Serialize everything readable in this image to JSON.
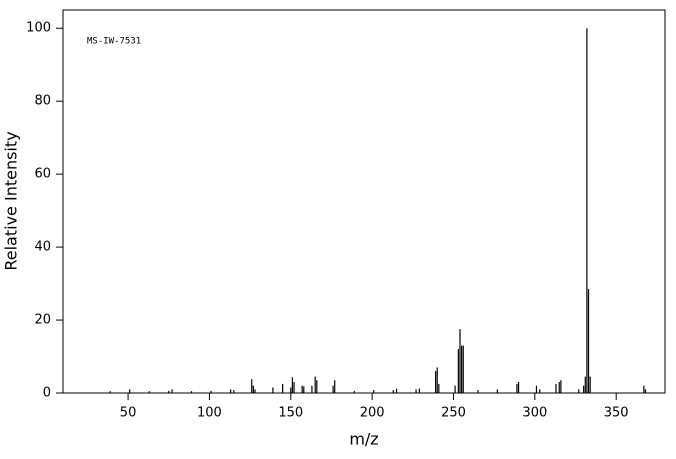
{
  "chart_data": {
    "type": "stick",
    "annotation": "MS-IW-7531",
    "xlabel": "m/z",
    "ylabel": "Relative Intensity",
    "x": [
      39,
      51,
      63,
      75,
      77,
      89,
      101,
      113,
      115,
      126,
      127,
      128,
      139,
      145,
      150,
      151,
      152,
      157,
      158,
      163,
      165,
      166,
      176,
      177,
      189,
      201,
      213,
      215,
      227,
      229,
      239,
      240,
      241,
      251,
      253,
      254,
      255,
      256,
      265,
      277,
      289,
      290,
      301,
      303,
      313,
      315,
      316,
      327,
      330,
      331,
      332,
      333,
      334,
      367,
      368
    ],
    "values": [
      0.5,
      1,
      0.5,
      0.6,
      1,
      0.5,
      0.6,
      1,
      0.8,
      3.8,
      2,
      1,
      1.5,
      2.5,
      1.5,
      4.3,
      3,
      2,
      1.8,
      2,
      4.5,
      3.5,
      2,
      3.5,
      0.6,
      0.8,
      0.8,
      1.2,
      1,
      1.2,
      6,
      7,
      2.5,
      2,
      12,
      17.5,
      13,
      13,
      0.8,
      1,
      2.5,
      3,
      2,
      1,
      2.5,
      3,
      3.5,
      1,
      2,
      4.5,
      100,
      28.5,
      4.5,
      2,
      1
    ],
    "color": "#000000",
    "xlim": [
      10,
      380
    ],
    "ylim": [
      0,
      105
    ],
    "xticks": [
      50,
      100,
      150,
      200,
      250,
      300,
      350
    ],
    "yticks": [
      0,
      20,
      40,
      60,
      80,
      100
    ]
  }
}
